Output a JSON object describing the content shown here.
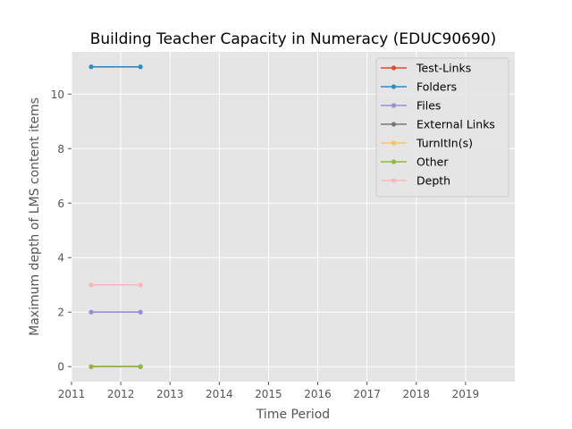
{
  "chart_data": {
    "type": "line",
    "title": "Building Teacher Capacity in Numeracy (EDUC90690)",
    "xlabel": "Time Period",
    "ylabel": "Maximum depth of LMS content items",
    "xlim": [
      2011.0,
      2020.0
    ],
    "ylim": [
      -0.55,
      11.55
    ],
    "xticks": [
      2011,
      2012,
      2013,
      2014,
      2015,
      2016,
      2017,
      2018,
      2019
    ],
    "yticks": [
      0,
      2,
      4,
      6,
      8,
      10
    ],
    "grid": true,
    "legend_position": "top-right",
    "background": "#e5e5e5",
    "x": [
      2011.4,
      2012.4
    ],
    "series": [
      {
        "name": "Test-Links",
        "color": "#e24a33",
        "values": [
          0,
          0
        ]
      },
      {
        "name": "Folders",
        "color": "#348abd",
        "values": [
          11,
          11
        ]
      },
      {
        "name": "Files",
        "color": "#988ed5",
        "values": [
          2,
          2
        ]
      },
      {
        "name": "External Links",
        "color": "#777777",
        "values": [
          0,
          0
        ]
      },
      {
        "name": "TurnItIn(s)",
        "color": "#fbc15e",
        "values": [
          0,
          0
        ]
      },
      {
        "name": "Other",
        "color": "#8eba42",
        "values": [
          0,
          0
        ]
      },
      {
        "name": "Depth",
        "color": "#ffb5b8",
        "values": [
          3,
          3
        ]
      }
    ]
  }
}
